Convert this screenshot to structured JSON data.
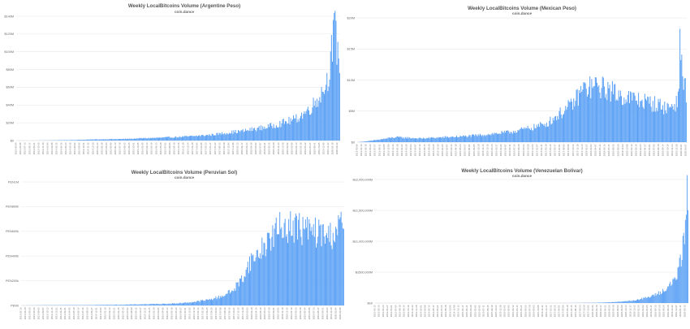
{
  "chart_data": [
    {
      "type": "bar",
      "title": "Weekly LocalBitcoins Volume (Argentine Peso)",
      "subtitle": "coin.dance",
      "xlabel": "",
      "ylabel": "",
      "ylim": [
        0,
        140000000
      ],
      "ytick_values": [
        0,
        20000000,
        40000000,
        60000000,
        80000000,
        100000000,
        120000000,
        140000000
      ],
      "ytick_labels": [
        "$0",
        "$20M",
        "$40M",
        "$60M",
        "$80M",
        "$100M",
        "$120M",
        "$140M"
      ],
      "xlim": [
        "2013-05-04",
        "2020-03-07"
      ],
      "grid": true,
      "legend": "none",
      "bar_color": "#5aa0f5",
      "series": [
        {
          "values_x": [
            "2013-05-04",
            "2013-08-10",
            "2013-11-16",
            "2014-02-22",
            "2014-05-31",
            "2014-09-06",
            "2014-12-13",
            "2015-03-21",
            "2015-06-27",
            "2015-10-03",
            "2016-01-09",
            "2016-04-16",
            "2016-07-23",
            "2016-10-29",
            "2017-02-04",
            "2017-05-13",
            "2017-08-19",
            "2017-11-25",
            "2018-03-03",
            "2018-06-09",
            "2018-09-15",
            "2018-12-22",
            "2019-03-30",
            "2019-06-01",
            "2019-08-03",
            "2019-10-05",
            "2019-11-09",
            "2019-12-07",
            "2020-01-04",
            "2020-01-18",
            "2020-02-01",
            "2020-02-15",
            "2020-03-07"
          ],
          "values": [
            0,
            0,
            100000,
            300000,
            500000,
            800000,
            1200000,
            1500000,
            1600000,
            2000000,
            2600000,
            3000000,
            3600000,
            4200000,
            5000000,
            6000000,
            7500000,
            9500000,
            11000000,
            13500000,
            16000000,
            20000000,
            24000000,
            30000000,
            38000000,
            50000000,
            60000000,
            70000000,
            100000000,
            115000000,
            125000000,
            105000000,
            90000000
          ]
        }
      ]
    },
    {
      "type": "bar",
      "title": "Weekly LocalBitcoins Volume (Mexican Peso)",
      "subtitle": "coin.dance",
      "xlabel": "",
      "ylabel": "",
      "ylim": [
        0,
        20000000
      ],
      "ytick_values": [
        0,
        5000000,
        10000000,
        15000000,
        20000000
      ],
      "ytick_labels": [
        "$0",
        "$5M",
        "$10M",
        "$15M",
        "$20M"
      ],
      "xlim": [
        "2013-03-09",
        "2020-03-07"
      ],
      "grid": true,
      "legend": "none",
      "bar_color": "#5aa0f5",
      "series": [
        {
          "values_x": [
            "2013-03-09",
            "2013-06-15",
            "2013-09-21",
            "2013-12-28",
            "2014-04-05",
            "2014-07-12",
            "2014-10-18",
            "2015-01-24",
            "2015-05-02",
            "2015-08-08",
            "2015-11-14",
            "2016-02-20",
            "2016-05-28",
            "2016-09-03",
            "2016-12-10",
            "2017-03-18",
            "2017-06-24",
            "2017-09-30",
            "2017-12-23",
            "2018-03-31",
            "2018-07-07",
            "2018-10-13",
            "2019-01-19",
            "2019-04-27",
            "2019-08-03",
            "2019-10-05",
            "2019-12-07",
            "2020-01-04",
            "2020-01-18",
            "2020-02-01",
            "2020-02-15",
            "2020-03-07"
          ],
          "values": [
            0,
            200000,
            500000,
            800000,
            700000,
            600000,
            700000,
            800000,
            900000,
            1000000,
            1200000,
            1400000,
            1600000,
            2000000,
            2400000,
            3000000,
            4500000,
            6000000,
            8500000,
            9000000,
            8500000,
            7500000,
            7000000,
            6500000,
            6000000,
            5500000,
            6000000,
            7000000,
            15000000,
            13000000,
            10000000,
            8000000
          ]
        }
      ]
    },
    {
      "type": "bar",
      "title": "Weekly LocalBitcoins Volume (Peruvian Sol)",
      "subtitle": "coin.dance",
      "xlabel": "",
      "ylabel": "",
      "ylim": [
        0,
        1000000
      ],
      "ytick_values": [
        0,
        200000,
        400000,
        600000,
        800000,
        1000000
      ],
      "ytick_labels": [
        "PEN0",
        "PEN200k",
        "PEN400k",
        "PEN600k",
        "PEN800k",
        "PEN1M"
      ],
      "xlim": [
        "2013-03-16",
        "2020-02-29"
      ],
      "grid": true,
      "legend": "none",
      "bar_color": "#5aa0f5",
      "series": [
        {
          "values_x": [
            "2013-03-16",
            "2013-06-22",
            "2013-09-28",
            "2014-01-04",
            "2014-04-12",
            "2014-07-19",
            "2014-10-25",
            "2015-01-31",
            "2015-05-09",
            "2015-08-15",
            "2015-11-21",
            "2016-02-27",
            "2016-06-04",
            "2016-09-10",
            "2016-12-17",
            "2017-03-25",
            "2017-07-01",
            "2017-10-07",
            "2017-12-23",
            "2018-02-17",
            "2018-04-28",
            "2018-07-07",
            "2018-09-15",
            "2018-11-24",
            "2019-02-02",
            "2019-04-13",
            "2019-06-22",
            "2019-08-31",
            "2019-11-09",
            "2020-01-04",
            "2020-02-29"
          ],
          "values": [
            0,
            1000,
            2000,
            2000,
            3000,
            3000,
            4000,
            5000,
            6000,
            8000,
            10000,
            12000,
            15000,
            20000,
            30000,
            45000,
            70000,
            120000,
            220000,
            350000,
            420000,
            520000,
            600000,
            650000,
            640000,
            620000,
            600000,
            580000,
            560000,
            620000,
            660000
          ]
        }
      ]
    },
    {
      "type": "bar",
      "title": "Weekly LocalBitcoins Volume (Venezuelan Bolivar)",
      "subtitle": "coin.dance",
      "xlabel": "",
      "ylabel": "",
      "ylim": [
        0,
        2000000000000
      ],
      "ytick_values": [
        0,
        500000000000,
        1000000000000,
        1500000000000,
        2000000000000
      ],
      "ytick_labels": [
        "Bs0",
        "Bs500,000M",
        "Bs1,000,000M",
        "Bs1,500,000M",
        "Bs2,000,000M"
      ],
      "xlim": [
        "2013-01-12",
        "2020-03-07"
      ],
      "grid": true,
      "legend": "none",
      "bar_color": "#5aa0f5",
      "series": [
        {
          "values_x": [
            "2013-01-12",
            "2013-06-15",
            "2013-11-16",
            "2014-04-19",
            "2014-09-20",
            "2015-02-21",
            "2015-07-25",
            "2015-12-26",
            "2016-05-28",
            "2016-10-29",
            "2017-04-01",
            "2017-09-02",
            "2018-02-03",
            "2018-07-07",
            "2018-12-08",
            "2019-03-16",
            "2019-05-25",
            "2019-07-27",
            "2019-09-21",
            "2019-11-09",
            "2019-12-14",
            "2020-01-11",
            "2020-02-01",
            "2020-02-15",
            "2020-03-07"
          ],
          "values": [
            0,
            0,
            0,
            0,
            0,
            0,
            0,
            0,
            0,
            0,
            500000000,
            2000000000,
            5000000000,
            15000000000,
            40000000000,
            80000000000,
            120000000000,
            180000000000,
            250000000000,
            350000000000,
            500000000000,
            700000000000,
            1000000000000,
            1400000000000,
            1900000000000
          ]
        }
      ]
    }
  ]
}
